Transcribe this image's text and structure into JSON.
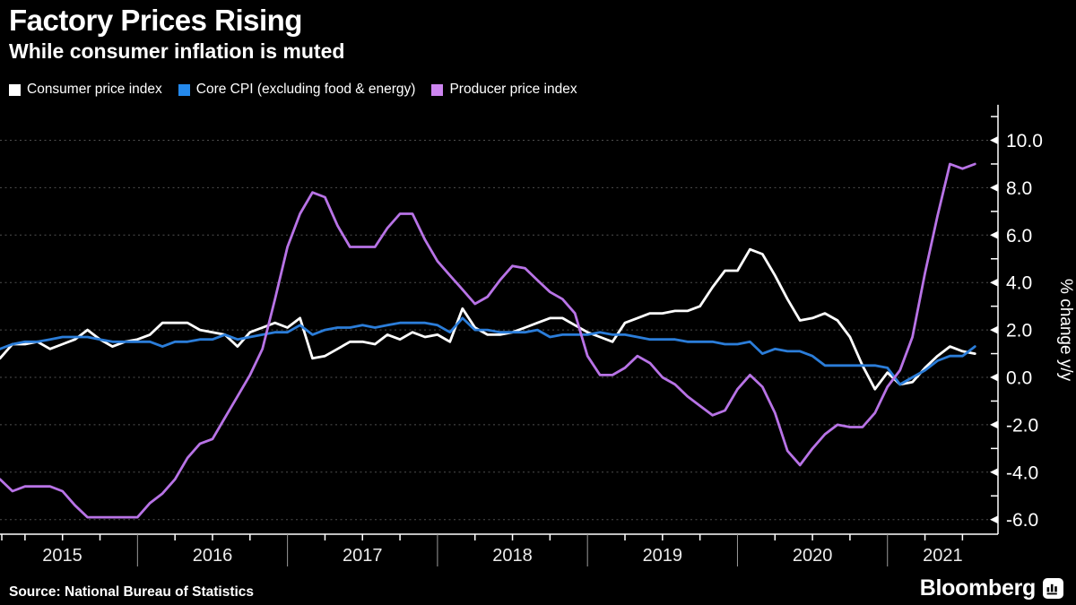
{
  "header": {
    "title": "Factory Prices Rising",
    "subtitle": "While consumer inflation is muted"
  },
  "footer": {
    "source": "Source: National Bureau of Statistics",
    "brand": "Bloomberg"
  },
  "chart_data": {
    "type": "line",
    "title": "Factory Prices Rising",
    "subtitle": "While consumer inflation is muted",
    "frequency": "monthly",
    "x_start": "2015-01",
    "x_end": "2021-07",
    "x_tick_years": [
      "2015",
      "2016",
      "2017",
      "2018",
      "2019",
      "2020",
      "2021"
    ],
    "ylabel": "% change y/y",
    "ylim": [
      -6.6,
      11.5
    ],
    "y_ticks": [
      10,
      8,
      6,
      4,
      2,
      0,
      -2,
      -4,
      -6
    ],
    "y_tick_labels": [
      "10.0",
      "8.0",
      "6.0",
      "4.0",
      "2.0",
      "0.0",
      "-2.0",
      "-4.0",
      "-6.0"
    ],
    "grid": "horizontal dashed every 2.0",
    "legend_position": "top-left",
    "background_color": "#000000",
    "series": [
      {
        "name": "Consumer price index",
        "color": "#ffffff",
        "swatch": "#ffffff",
        "values": [
          0.8,
          1.4,
          1.4,
          1.5,
          1.2,
          1.4,
          1.6,
          2.0,
          1.6,
          1.3,
          1.5,
          1.6,
          1.8,
          2.3,
          2.3,
          2.3,
          2.0,
          1.9,
          1.8,
          1.3,
          1.9,
          2.1,
          2.3,
          2.1,
          2.5,
          0.8,
          0.9,
          1.2,
          1.5,
          1.5,
          1.4,
          1.8,
          1.6,
          1.9,
          1.7,
          1.8,
          1.5,
          2.9,
          2.1,
          1.8,
          1.8,
          1.9,
          2.1,
          2.3,
          2.5,
          2.5,
          2.2,
          1.9,
          1.7,
          1.5,
          2.3,
          2.5,
          2.7,
          2.7,
          2.8,
          2.8,
          3.0,
          3.8,
          4.5,
          4.5,
          5.4,
          5.2,
          4.3,
          3.3,
          2.4,
          2.5,
          2.7,
          2.4,
          1.7,
          0.5,
          -0.5,
          0.2,
          -0.3,
          -0.2,
          0.4,
          0.9,
          1.3,
          1.1,
          1.0
        ]
      },
      {
        "name": "Core CPI (excluding food & energy)",
        "color": "#2b7dd9",
        "swatch": "#2489ec",
        "values": [
          1.2,
          1.4,
          1.5,
          1.5,
          1.6,
          1.7,
          1.7,
          1.7,
          1.6,
          1.5,
          1.5,
          1.5,
          1.5,
          1.3,
          1.5,
          1.5,
          1.6,
          1.6,
          1.8,
          1.6,
          1.7,
          1.8,
          1.9,
          1.9,
          2.2,
          1.8,
          2.0,
          2.1,
          2.1,
          2.2,
          2.1,
          2.2,
          2.3,
          2.3,
          2.3,
          2.2,
          1.9,
          2.5,
          2.0,
          2.0,
          1.9,
          1.9,
          1.9,
          2.0,
          1.7,
          1.8,
          1.8,
          1.8,
          1.9,
          1.8,
          1.8,
          1.7,
          1.6,
          1.6,
          1.6,
          1.5,
          1.5,
          1.5,
          1.4,
          1.4,
          1.5,
          1.0,
          1.2,
          1.1,
          1.1,
          0.9,
          0.5,
          0.5,
          0.5,
          0.5,
          0.5,
          0.4,
          -0.3,
          0.0,
          0.3,
          0.7,
          0.9,
          0.9,
          1.3
        ]
      },
      {
        "name": "Producer price index",
        "color": "#b873e6",
        "swatch": "#cd85f0",
        "values": [
          -4.3,
          -4.8,
          -4.6,
          -4.6,
          -4.6,
          -4.8,
          -5.4,
          -5.9,
          -5.9,
          -5.9,
          -5.9,
          -5.9,
          -5.3,
          -4.9,
          -4.3,
          -3.4,
          -2.8,
          -2.6,
          -1.7,
          -0.8,
          0.1,
          1.2,
          3.3,
          5.5,
          6.9,
          7.8,
          7.6,
          6.4,
          5.5,
          5.5,
          5.5,
          6.3,
          6.9,
          6.9,
          5.8,
          4.9,
          4.3,
          3.7,
          3.1,
          3.4,
          4.1,
          4.7,
          4.6,
          4.1,
          3.6,
          3.3,
          2.7,
          0.9,
          0.1,
          0.1,
          0.4,
          0.9,
          0.6,
          0.0,
          -0.3,
          -0.8,
          -1.2,
          -1.6,
          -1.4,
          -0.5,
          0.1,
          -0.4,
          -1.5,
          -3.1,
          -3.7,
          -3.0,
          -2.4,
          -2.0,
          -2.1,
          -2.1,
          -1.5,
          -0.4,
          0.3,
          1.7,
          4.4,
          6.8,
          9.0,
          8.8,
          9.0
        ]
      }
    ]
  }
}
